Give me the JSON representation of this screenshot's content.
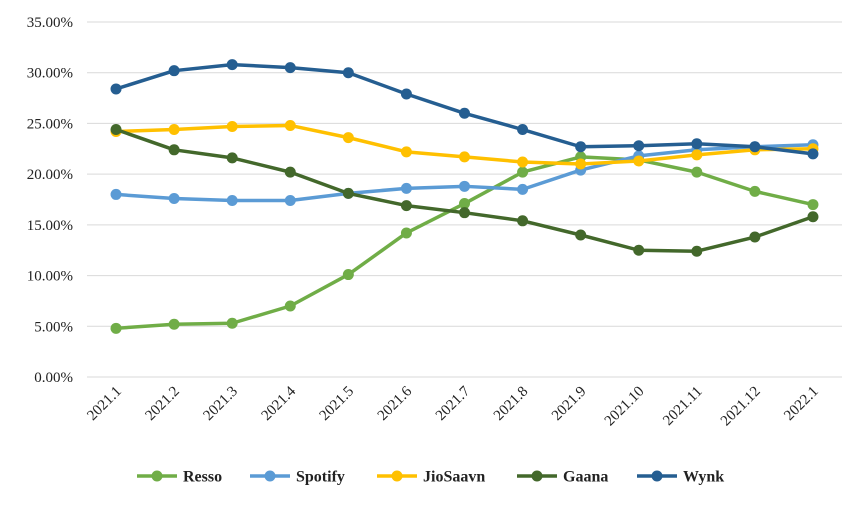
{
  "chart_data": {
    "type": "line",
    "title": "",
    "xlabel": "",
    "ylabel": "",
    "categories": [
      "2021.1",
      "2021.2",
      "2021.3",
      "2021.4",
      "2021.5",
      "2021.6",
      "2021.7",
      "2021.8",
      "2021.9",
      "2021.10",
      "2021.11",
      "2021.12",
      "2022.1"
    ],
    "ylim": [
      0,
      35
    ],
    "yticks": [
      0,
      5,
      10,
      15,
      20,
      25,
      30,
      35
    ],
    "ytick_labels": [
      "0.00%",
      "5.00%",
      "10.00%",
      "15.00%",
      "20.00%",
      "25.00%",
      "30.00%",
      "35.00%"
    ],
    "grid": true,
    "legend_position": "bottom",
    "series": [
      {
        "name": "Resso",
        "color": "#70ad47",
        "values": [
          4.8,
          5.2,
          5.3,
          7.0,
          10.1,
          14.2,
          17.1,
          20.2,
          21.7,
          21.4,
          20.2,
          18.3,
          17.0
        ]
      },
      {
        "name": "Spotify",
        "color": "#5b9bd5",
        "values": [
          18.0,
          17.6,
          17.4,
          17.4,
          18.1,
          18.6,
          18.8,
          18.5,
          20.4,
          21.8,
          22.4,
          22.7,
          22.9
        ]
      },
      {
        "name": "JioSaavn",
        "color": "#ffc000",
        "values": [
          24.2,
          24.4,
          24.7,
          24.8,
          23.6,
          22.2,
          21.7,
          21.2,
          21.0,
          21.3,
          21.9,
          22.4,
          22.5
        ]
      },
      {
        "name": "Gaana",
        "color": "#43682b",
        "values": [
          24.4,
          22.4,
          21.6,
          20.2,
          18.1,
          16.9,
          16.2,
          15.4,
          14.0,
          12.5,
          12.4,
          13.8,
          15.8
        ]
      },
      {
        "name": "Wynk",
        "color": "#255e91",
        "values": [
          28.4,
          30.2,
          30.8,
          30.5,
          30.0,
          27.9,
          26.0,
          24.4,
          22.7,
          22.8,
          23.0,
          22.7,
          22.0
        ]
      }
    ]
  }
}
